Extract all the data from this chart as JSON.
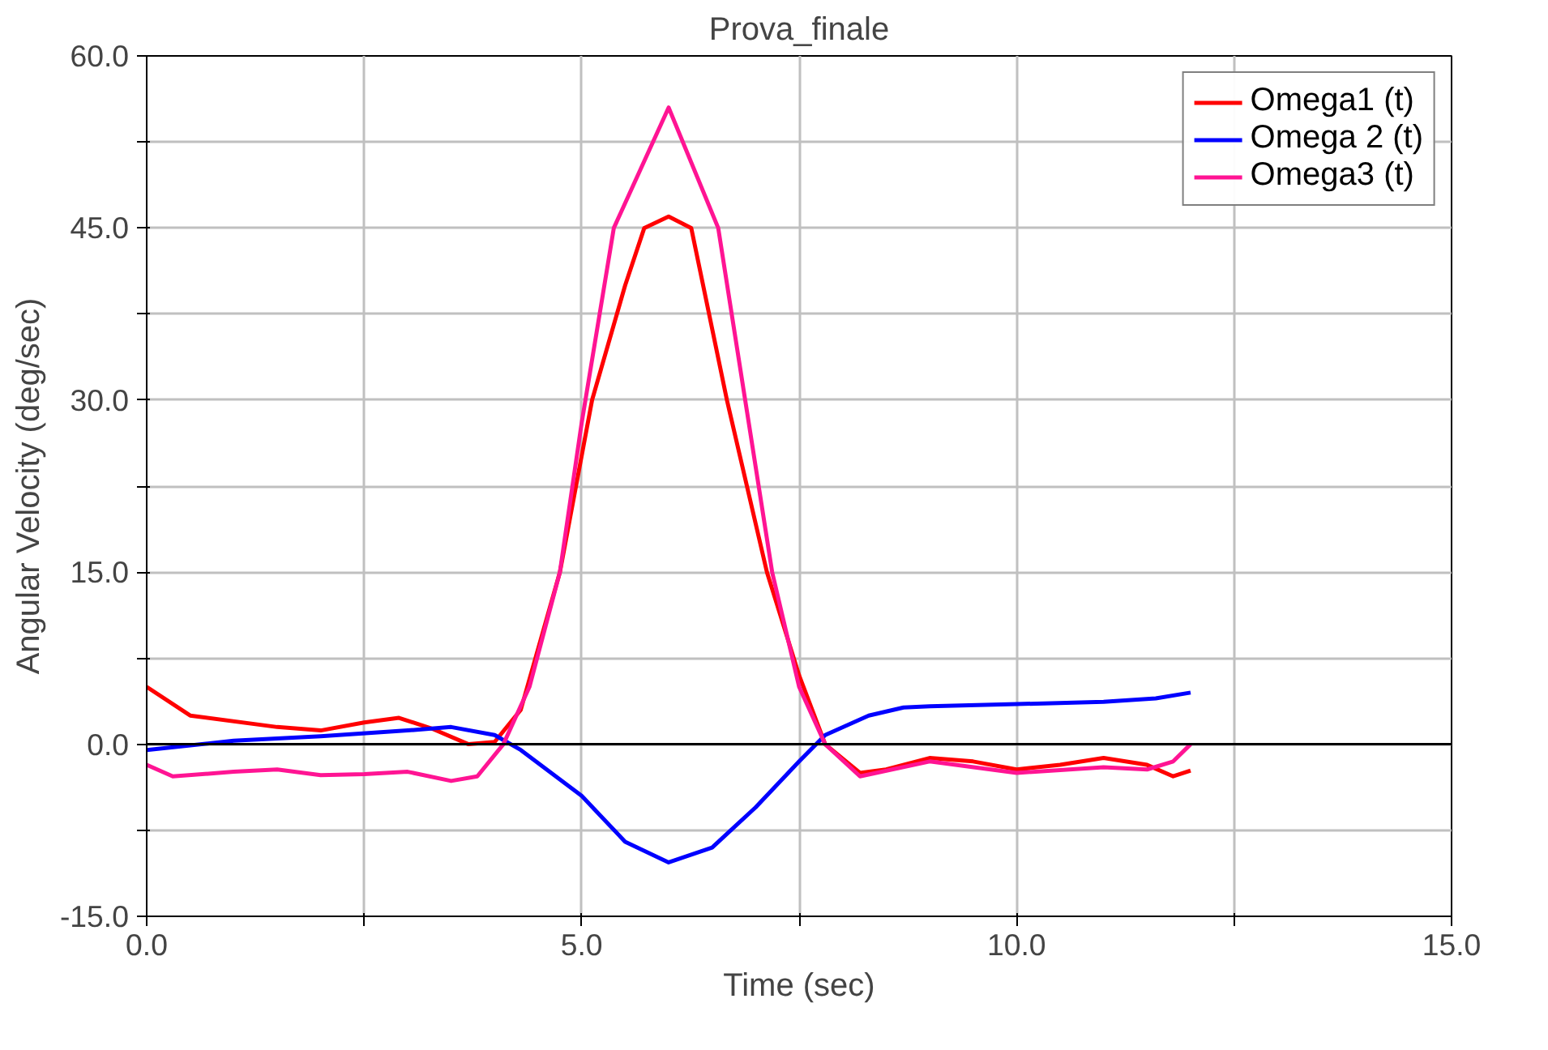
{
  "chart_data": {
    "type": "line",
    "title": "Prova_finale",
    "xlabel": "Time (sec)",
    "ylabel": "Angular Velocity (deg/sec)",
    "xlim": [
      0,
      15
    ],
    "ylim": [
      -15,
      60
    ],
    "xticks": [
      "0.0",
      {
        "value": 2.5,
        "label": null
      },
      {
        "value": 5,
        "label": "5.0"
      },
      {
        "value": 7.5,
        "label": null
      },
      {
        "value": 10,
        "label": "10.0"
      },
      {
        "value": 12.5,
        "label": null
      },
      {
        "value": 15,
        "label": "15.0"
      }
    ],
    "yticks": [
      {
        "value": -15,
        "label": "-15.0"
      },
      {
        "value": -7.5,
        "label": null
      },
      {
        "value": 0,
        "label": "0.0"
      },
      {
        "value": 7.5,
        "label": null
      },
      {
        "value": 15,
        "label": "15.0"
      },
      {
        "value": 22.5,
        "label": null
      },
      {
        "value": 30,
        "label": "30.0"
      },
      {
        "value": 37.5,
        "label": null
      },
      {
        "value": 45,
        "label": "45.0"
      },
      {
        "value": 52.5,
        "label": null
      },
      {
        "value": 60,
        "label": "60.0"
      }
    ],
    "grid": true,
    "legend": "top right",
    "marker": "none",
    "line_style": "solid",
    "ref_lines": [
      {
        "axis": "y",
        "value": 0,
        "color": "#000000"
      }
    ],
    "series": [
      {
        "name": "Omega1 (t)",
        "color": "#ff0000",
        "x": [
          0,
          0.5,
          1.5,
          2,
          2.5,
          2.9,
          3.3,
          3.7,
          4.0,
          4.3,
          4.75,
          5.12,
          5.5,
          5.72,
          6.0,
          6.26,
          6.67,
          7.13,
          7.5,
          7.8,
          8.2,
          8.5,
          9,
          9.5,
          10,
          10.5,
          11,
          11.5,
          11.8,
          12
        ],
        "values": [
          5.0,
          2.5,
          1.5,
          1.2,
          1.9,
          2.3,
          1.3,
          0,
          0.2,
          3,
          15,
          30,
          40,
          45,
          46,
          45,
          30,
          15,
          6,
          0,
          -2.5,
          -2.2,
          -1.2,
          -1.5,
          -2.2,
          -1.8,
          -1.2,
          -1.8,
          -2.8,
          -2.3
        ]
      },
      {
        "name": "Omega 2 (t)",
        "color": "#0000ff",
        "x": [
          0,
          1,
          2,
          3,
          3.5,
          4,
          4.3,
          5,
          5.5,
          6,
          6.5,
          7,
          7.5,
          7.8,
          8.3,
          8.7,
          9,
          10,
          11,
          11.6,
          12
        ],
        "values": [
          -0.5,
          0.3,
          0.7,
          1.2,
          1.5,
          0.8,
          -0.5,
          -4.5,
          -8.5,
          -10.3,
          -9,
          -5.5,
          -1.5,
          0.8,
          2.5,
          3.2,
          3.3,
          3.5,
          3.7,
          4,
          4.5
        ]
      },
      {
        "name": "Omega3 (t)",
        "color": "#ff1493",
        "x": [
          0,
          0.3,
          1,
          1.5,
          2,
          2.5,
          3,
          3.5,
          3.8,
          4.1,
          4.4,
          4.75,
          5.0,
          5.37,
          6.0,
          6.57,
          6.88,
          7.19,
          7.5,
          7.8,
          8.2,
          9,
          10,
          11,
          11.5,
          11.8,
          12
        ],
        "values": [
          -1.8,
          -2.8,
          -2.4,
          -2.2,
          -2.7,
          -2.6,
          -2.4,
          -3.2,
          -2.8,
          0,
          5,
          15,
          28,
          45,
          55.5,
          45,
          30,
          15,
          5,
          0,
          -2.8,
          -1.5,
          -2.5,
          -2,
          -2.2,
          -1.5,
          0
        ]
      }
    ]
  }
}
